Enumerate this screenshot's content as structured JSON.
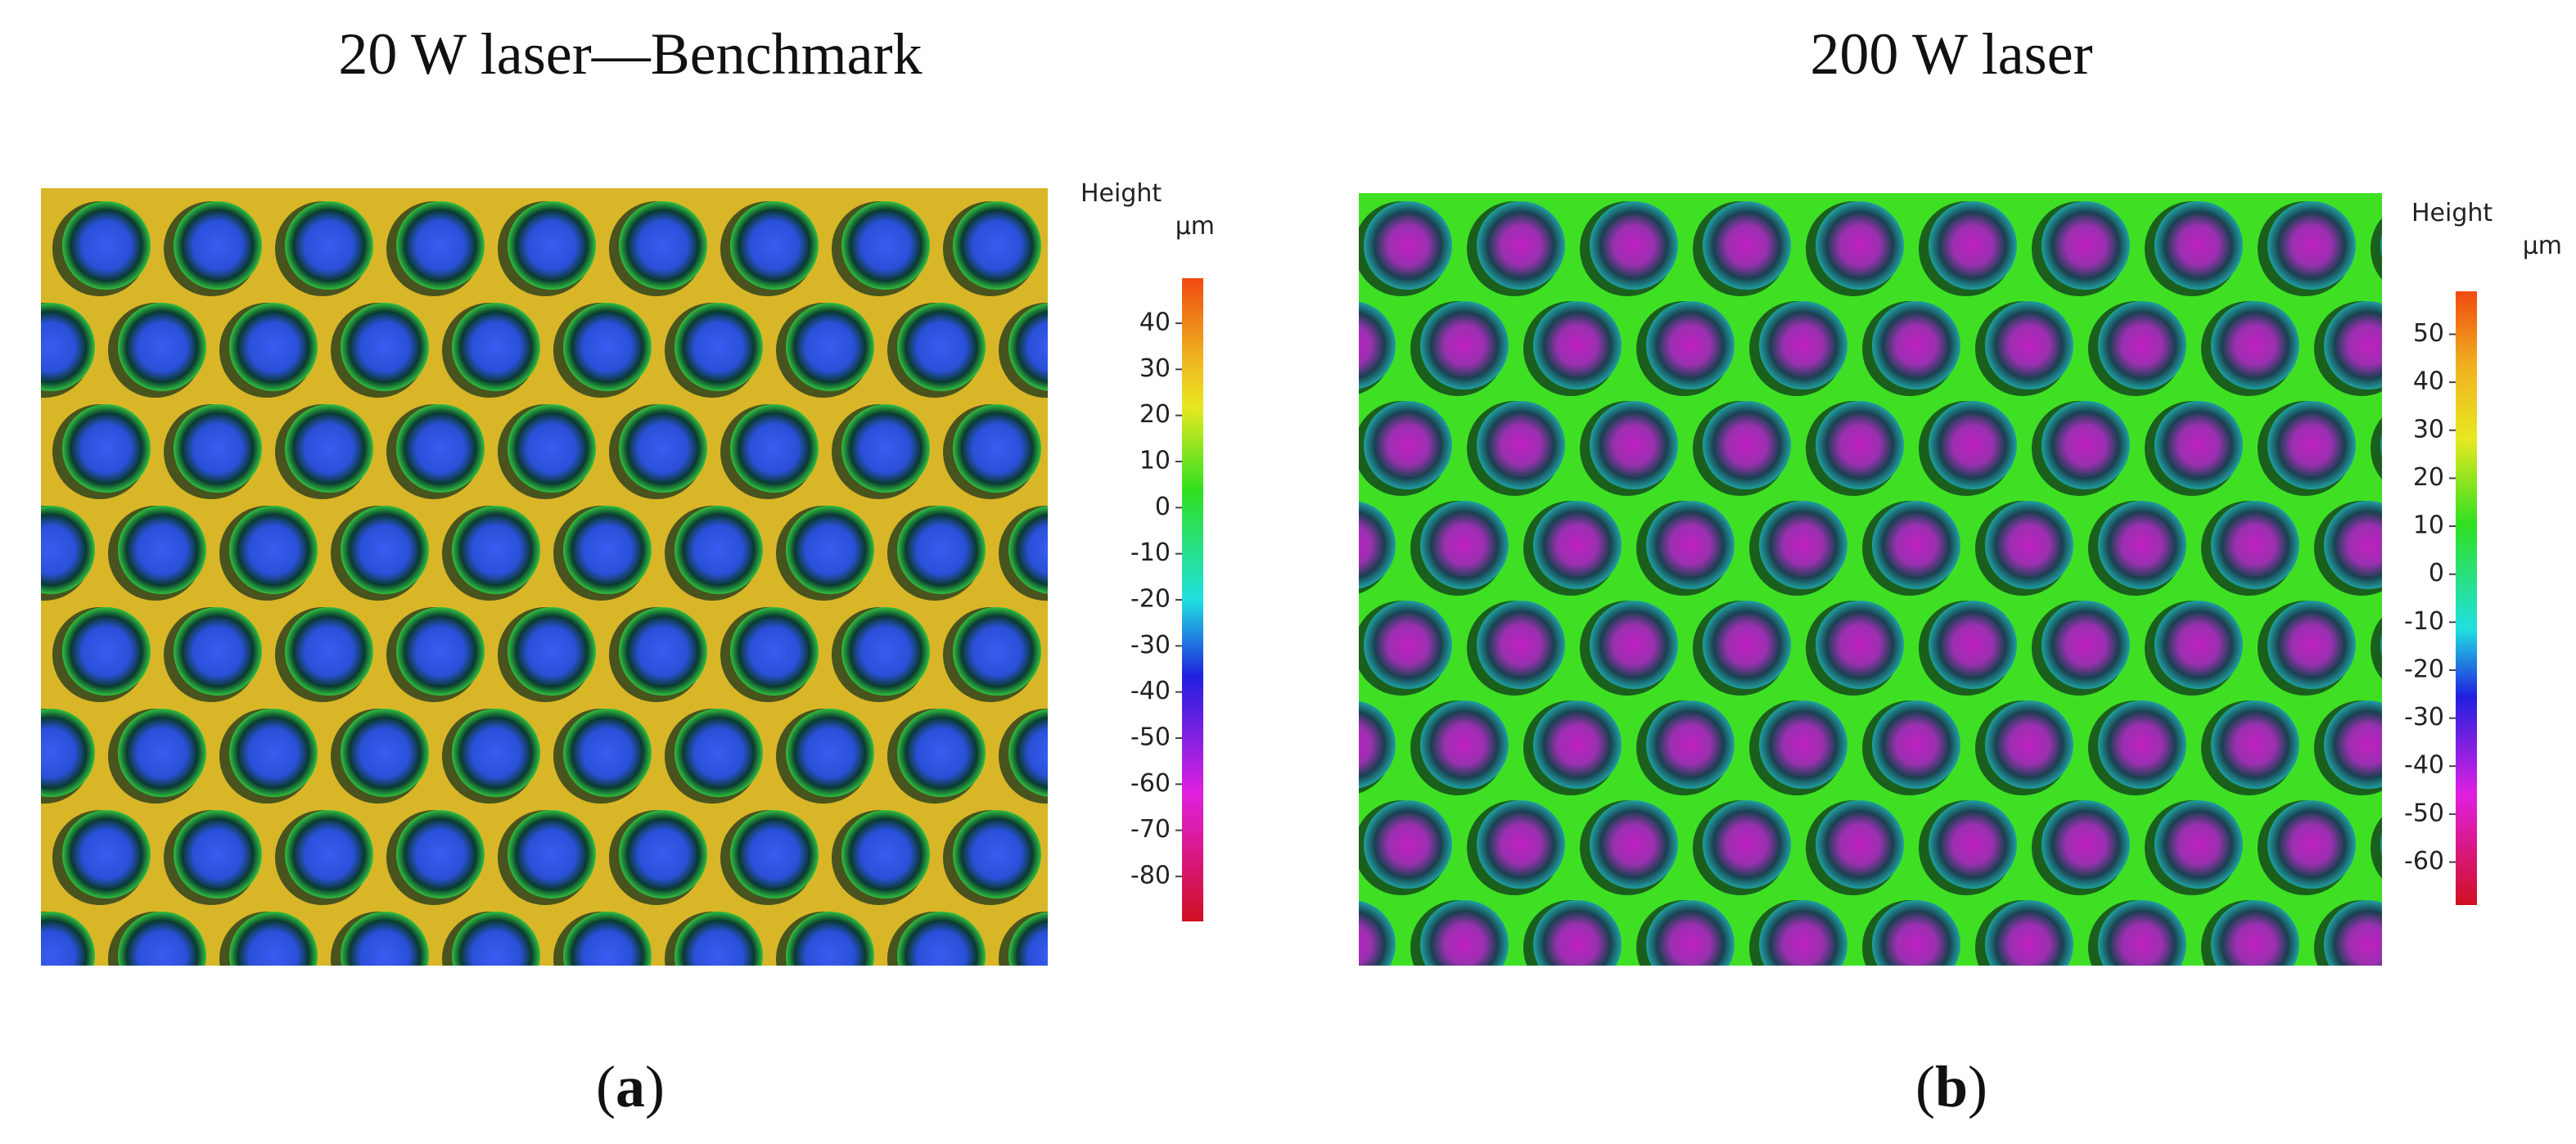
{
  "panels": [
    {
      "title": "20 W laser—Benchmark",
      "colorbar": {
        "label": "Height",
        "unit": "µm",
        "ticks": [
          40,
          30,
          20,
          10,
          0,
          -10,
          -20,
          -30,
          -40,
          -50,
          -60,
          -70,
          -80
        ]
      },
      "caption": {
        "open": "(",
        "letter": "a",
        "close": ")"
      }
    },
    {
      "title": "200 W laser",
      "colorbar": {
        "label": "Height",
        "unit": "µm",
        "ticks": [
          50,
          40,
          30,
          20,
          10,
          0,
          -10,
          -20,
          -30,
          -40,
          -50,
          -60
        ]
      },
      "caption": {
        "open": "(",
        "letter": "b",
        "close": ")"
      }
    }
  ]
}
